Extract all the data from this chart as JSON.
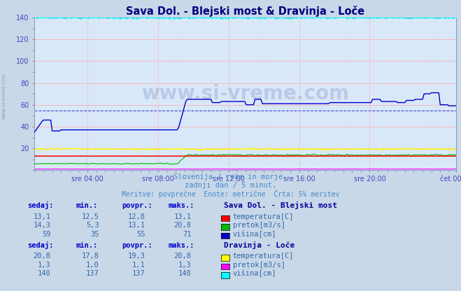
{
  "title": "Sava Dol. - Blejski most & Dravinja - Loče",
  "title_color": "#000080",
  "bg_color": "#c8d8e8",
  "plot_bg_color": "#d8e8f8",
  "grid_color_major": "#ffb0b0",
  "grid_color_minor": "#e8e8ff",
  "ylim": [
    0,
    140
  ],
  "yticks": [
    20,
    40,
    60,
    80,
    100,
    120,
    140
  ],
  "xlabel_color": "#4444bb",
  "xtick_labels": [
    "sre 04:00",
    "sre 08:00",
    "sre 12:00",
    "sre 16:00",
    "sre 20:00",
    "čet 00:00"
  ],
  "watermark": "www.si-vreme.com",
  "watermark_color": "#000080",
  "subtitle1": "Slovenija / reke in morje.",
  "subtitle2": "zadnji dan / 5 minut.",
  "subtitle3": "Meritve: povprečne  Enote: metrične  Črta: 5% meritev",
  "subtitle_color": "#4488cc",
  "n_points": 288,
  "sava_temp_color": "#ff0000",
  "sava_pretok_color": "#00bb00",
  "sava_visina_color": "#0000cc",
  "drav_temp_color": "#ffff00",
  "drav_pretok_color": "#ff00ff",
  "drav_visina_color": "#00ffff",
  "sava_temp_val": 13.1,
  "sava_temp_min": 12.5,
  "sava_temp_povpr": 12.8,
  "sava_temp_maks": 13.1,
  "sava_pretok_sedaj": 14.3,
  "sava_pretok_min": 5.3,
  "sava_pretok_povpr": 13.1,
  "sava_pretok_maks": 20.8,
  "sava_visina_sedaj": 59,
  "sava_visina_min": 35,
  "sava_visina_povpr": 55,
  "sava_visina_maks": 71,
  "drav_temp_val": 20.8,
  "drav_temp_min": 17.8,
  "drav_temp_povpr": 19.3,
  "drav_temp_maks": 20.8,
  "drav_pretok_sedaj": 1.3,
  "drav_pretok_min": 1.0,
  "drav_pretok_povpr": 1.1,
  "drav_pretok_maks": 1.3,
  "drav_visina_sedaj": 140,
  "drav_visina_min": 137,
  "drav_visina_povpr": 137,
  "drav_visina_maks": 140,
  "tick_positions": [
    36,
    84,
    132,
    180,
    228,
    287
  ]
}
